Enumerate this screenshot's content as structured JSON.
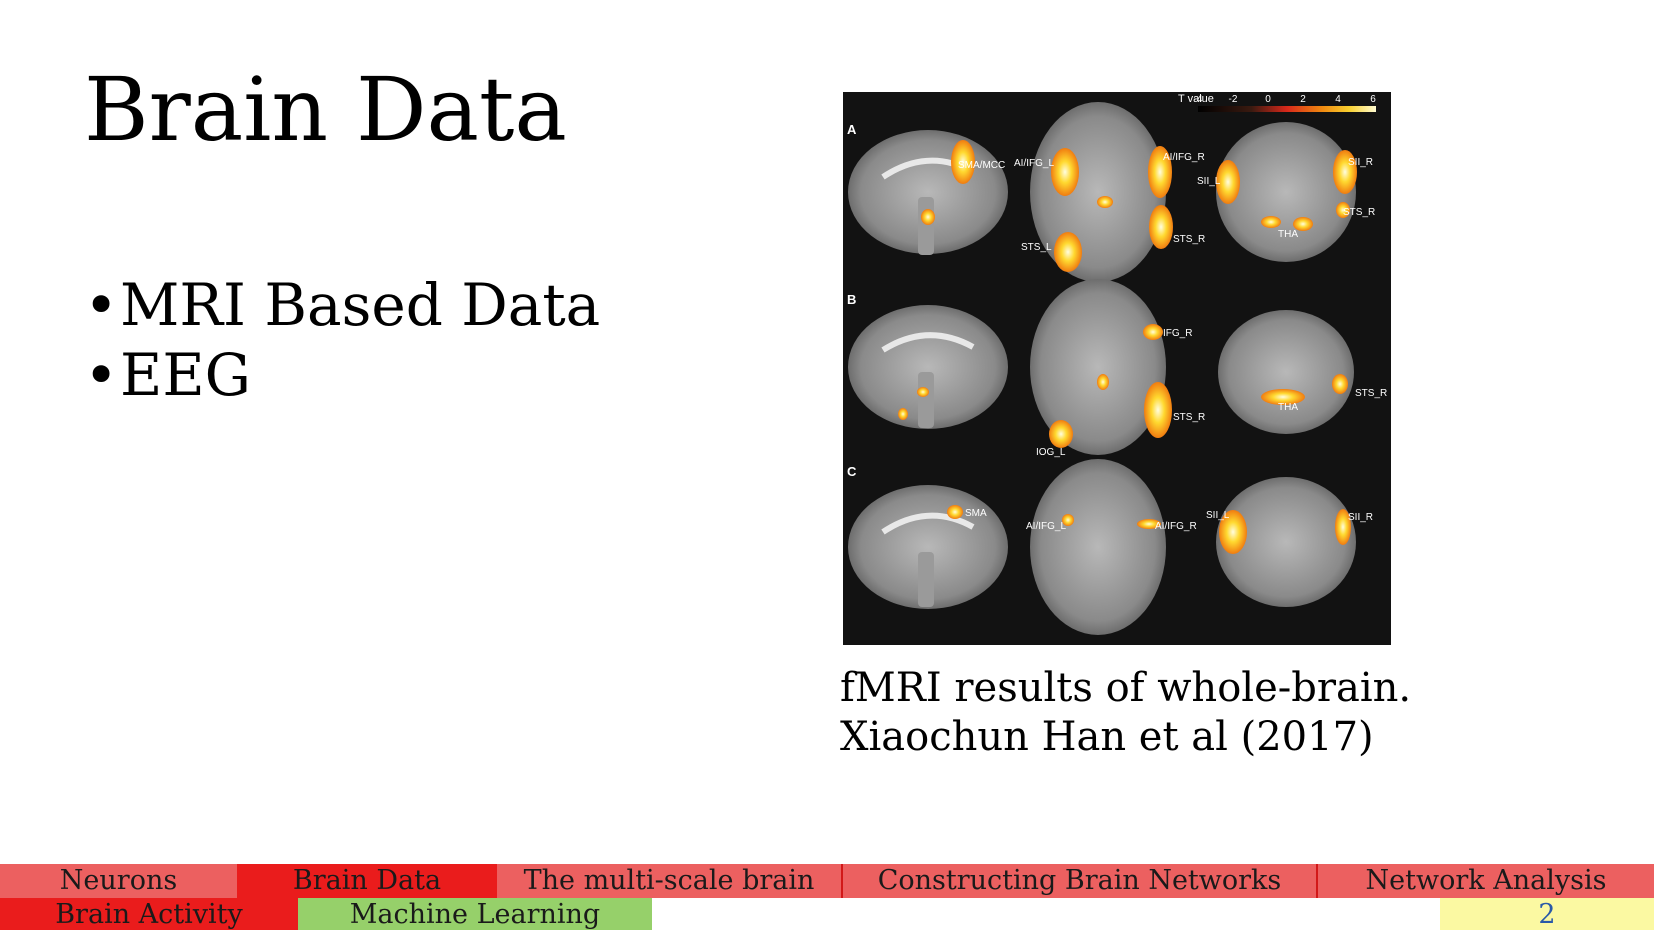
{
  "slide": {
    "title": "Brain Data",
    "bullets": [
      "MRI Based Data",
      "EEG"
    ],
    "caption": {
      "line1": "fMRI results of whole-brain.",
      "line2": "Xiaochun Han et al (2017)"
    }
  },
  "figure": {
    "colorbar_title": "T value",
    "colorbar_ticks": [
      "-4",
      "-2",
      "0",
      "2",
      "4",
      "6"
    ],
    "row_labels": [
      "A",
      "B",
      "C"
    ],
    "regions": {
      "a_sma_mcc": "SMA/MCC",
      "a_aiifg_l": "AI/IFG_L",
      "a_aiifg_r": "AI/IFG_R",
      "a_sts_l": "STS_L",
      "a_sts_r": "STS_R",
      "a_sii_l": "SII_L",
      "a_sii_r": "SII_R",
      "a_sts_r2": "STS_R",
      "a_tha": "THA",
      "b_ifg_r": "IFG_R",
      "b_sts_r": "STS_R",
      "b_iog_l": "IOG_L",
      "b_sts_r2": "STS_R",
      "b_tha": "THA",
      "c_sma": "SMA",
      "c_aiifg_l": "AI/IFG_L",
      "c_aiifg_r": "AI/IFG_R",
      "c_sii_l": "SII_L",
      "c_sii_r": "SII_R"
    }
  },
  "navigation": {
    "row1": [
      "Neurons",
      "Brain Data",
      "The multi-scale brain",
      "Constructing Brain Networks",
      "Network Analysis"
    ],
    "row2": [
      "Brain Activity",
      "Machine Learning"
    ],
    "page_number": "2"
  },
  "colors": {
    "nav_light_red": "#ec6060",
    "nav_red": "#ea1c1c",
    "nav_green": "#96d06a",
    "nav_yellow": "#fbf9a2",
    "page_number": "#2a5aa8"
  }
}
